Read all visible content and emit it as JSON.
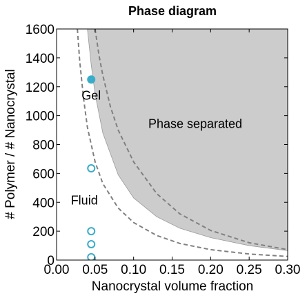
{
  "chart_data": {
    "type": "scatter",
    "title": "Phase diagram",
    "xlabel": "Nanocrystal volume fraction",
    "ylabel": "# Polymer / # Nanocrystal",
    "xlim": [
      0.0,
      0.3
    ],
    "ylim": [
      0,
      1600
    ],
    "x_ticks": [
      0.0,
      0.05,
      0.1,
      0.15,
      0.2,
      0.25,
      0.3
    ],
    "x_tick_labels": [
      "0.00",
      "0.05",
      "0.10",
      "0.15",
      "0.20",
      "0.25",
      "0.30"
    ],
    "y_ticks": [
      0,
      200,
      400,
      600,
      800,
      1000,
      1200,
      1400,
      1600
    ],
    "y_tick_labels": [
      "0",
      "200",
      "400",
      "600",
      "800",
      "1000",
      "1200",
      "1400",
      "1600"
    ],
    "grid": false,
    "regions": [
      {
        "label": "Phase separated",
        "color": "#cccccc",
        "boundary_points": [
          [
            0.04,
            1600
          ],
          [
            0.045,
            1350
          ],
          [
            0.05,
            1150
          ],
          [
            0.06,
            880
          ],
          [
            0.08,
            590
          ],
          [
            0.1,
            430
          ],
          [
            0.13,
            300
          ],
          [
            0.16,
            220
          ],
          [
            0.2,
            155
          ],
          [
            0.25,
            100
          ],
          [
            0.3,
            65
          ]
        ]
      }
    ],
    "dashed_curves": [
      {
        "color": "#808080",
        "points": [
          [
            0.027,
            1600
          ],
          [
            0.03,
            1380
          ],
          [
            0.035,
            1120
          ],
          [
            0.04,
            920
          ],
          [
            0.05,
            680
          ],
          [
            0.06,
            530
          ],
          [
            0.08,
            360
          ],
          [
            0.1,
            260
          ],
          [
            0.13,
            170
          ],
          [
            0.16,
            115
          ],
          [
            0.2,
            72
          ],
          [
            0.25,
            42
          ],
          [
            0.3,
            25
          ]
        ]
      },
      {
        "color": "#808080",
        "points": [
          [
            0.05,
            1600
          ],
          [
            0.055,
            1420
          ],
          [
            0.06,
            1280
          ],
          [
            0.07,
            1060
          ],
          [
            0.08,
            900
          ],
          [
            0.1,
            680
          ],
          [
            0.13,
            460
          ],
          [
            0.16,
            320
          ],
          [
            0.2,
            205
          ],
          [
            0.25,
            120
          ],
          [
            0.3,
            72
          ]
        ]
      }
    ],
    "points": [
      {
        "x": 0.045,
        "y": 1250,
        "filled": true
      },
      {
        "x": 0.045,
        "y": 635,
        "filled": false
      },
      {
        "x": 0.045,
        "y": 200,
        "filled": false
      },
      {
        "x": 0.045,
        "y": 110,
        "filled": false
      },
      {
        "x": 0.045,
        "y": 20,
        "filled": false
      }
    ],
    "point_color": "#3aacca",
    "annotations": [
      {
        "text": "Gel",
        "x": 0.045,
        "y": 1110
      },
      {
        "text": "Fluid",
        "x": 0.036,
        "y": 385
      },
      {
        "text": "Phase separated",
        "x": 0.18,
        "y": 915
      }
    ]
  }
}
